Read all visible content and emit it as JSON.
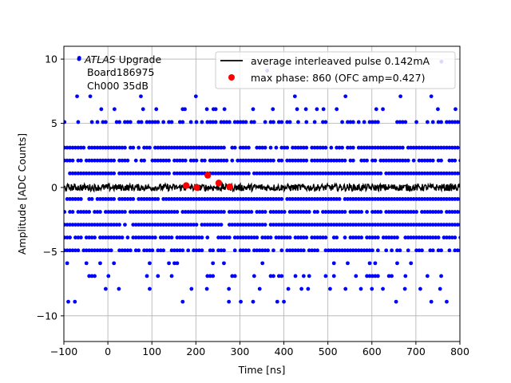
{
  "chart_data": {
    "type": "scatter",
    "xlabel": "Time [ns]",
    "ylabel": "Amplitude [ADC Counts]",
    "xlim": [
      -100,
      800
    ],
    "ylim": [
      -12,
      11
    ],
    "xticks": [
      -100,
      0,
      100,
      200,
      300,
      400,
      500,
      600,
      700,
      800
    ],
    "yticks": [
      -10,
      -5,
      0,
      5,
      10
    ],
    "grid": true,
    "annotation": {
      "italic": "ATLAS",
      "rest": " Upgrade",
      "line2": "Board186975",
      "line3": "Ch000 35dB"
    },
    "legend": {
      "placement": "top-right",
      "entries": [
        {
          "label": "average interleaved pulse 0.142mA",
          "marker": "line",
          "color": "#000000"
        },
        {
          "label": "max phase: 860 (OFC amp=0.427)",
          "marker": "dot",
          "color": "#ff0000"
        }
      ]
    },
    "series": [
      {
        "kind": "samples",
        "color": "#0000ff",
        "bands": [
          {
            "y": 5.1,
            "density": 0.55
          },
          {
            "y": 3.1,
            "density": 0.85
          },
          {
            "y": 2.1,
            "density": 0.8
          },
          {
            "y": 1.1,
            "density": 0.95
          },
          {
            "y": -0.9,
            "density": 0.95
          },
          {
            "y": -1.9,
            "density": 0.85
          },
          {
            "y": -2.9,
            "density": 0.95
          },
          {
            "y": -3.9,
            "density": 0.85
          },
          {
            "y": -4.9,
            "density": 0.75
          },
          {
            "y": -5.9,
            "density": 0.12
          },
          {
            "y": -6.9,
            "density": 0.18
          }
        ],
        "sparse_points": [
          [
            -65,
            10.1
          ],
          [
            -70,
            7.1
          ],
          [
            -40,
            7.1
          ],
          [
            -15,
            6.1
          ],
          [
            15,
            6.1
          ],
          [
            75,
            7.1
          ],
          [
            80,
            6.1
          ],
          [
            110,
            6.1
          ],
          [
            170,
            6.1
          ],
          [
            175,
            6.1
          ],
          [
            200,
            7.1
          ],
          [
            225,
            6.1
          ],
          [
            240,
            6.1
          ],
          [
            245,
            6.1
          ],
          [
            265,
            6.1
          ],
          [
            330,
            6.1
          ],
          [
            362,
            9.1
          ],
          [
            375,
            6.1
          ],
          [
            425,
            7.1
          ],
          [
            430,
            6.1
          ],
          [
            450,
            6.1
          ],
          [
            475,
            6.1
          ],
          [
            490,
            6.1
          ],
          [
            520,
            6.1
          ],
          [
            540,
            7.1
          ],
          [
            610,
            6.1
          ],
          [
            625,
            6.1
          ],
          [
            665,
            7.1
          ],
          [
            735,
            7.1
          ],
          [
            750,
            6.1
          ],
          [
            790,
            6.1
          ],
          [
            758,
            9.8
          ],
          [
            -90,
            -8.9
          ],
          [
            -75,
            -8.9
          ],
          [
            170,
            -8.9
          ],
          [
            275,
            -8.9
          ],
          [
            302,
            -8.9
          ],
          [
            330,
            -8.9
          ],
          [
            385,
            -8.9
          ],
          [
            400,
            -8.9
          ],
          [
            655,
            -8.9
          ],
          [
            735,
            -8.9
          ],
          [
            770,
            -8.9
          ],
          [
            -5,
            -7.9
          ],
          [
            25,
            -7.9
          ],
          [
            95,
            -7.9
          ],
          [
            190,
            -7.9
          ],
          [
            225,
            -7.9
          ],
          [
            275,
            -7.9
          ],
          [
            345,
            -7.9
          ],
          [
            410,
            -7.9
          ],
          [
            440,
            -7.9
          ],
          [
            455,
            -7.9
          ],
          [
            505,
            -7.9
          ],
          [
            540,
            -7.9
          ],
          [
            575,
            -7.9
          ],
          [
            600,
            -7.9
          ],
          [
            625,
            -7.9
          ],
          [
            675,
            -7.9
          ],
          [
            710,
            -7.9
          ],
          [
            755,
            -7.9
          ]
        ]
      },
      {
        "name": "average interleaved pulse 0.142mA",
        "kind": "line",
        "color": "#000000",
        "baseline": 0.0,
        "jitter": 0.55
      },
      {
        "name": "max phase: 860 (OFC amp=0.427)",
        "kind": "points",
        "color": "#ff0000",
        "points": [
          [
            178,
            0.15
          ],
          [
            202,
            0.0
          ],
          [
            227,
            0.95
          ],
          [
            252,
            0.35
          ],
          [
            277,
            0.05
          ]
        ]
      }
    ]
  }
}
